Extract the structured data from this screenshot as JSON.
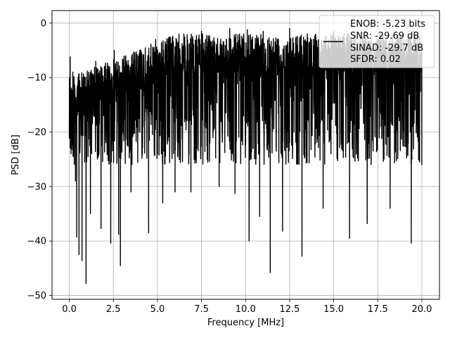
{
  "chart_data": {
    "type": "line",
    "title": "",
    "xlabel": "Frequency [MHz]",
    "ylabel": "PSD [dB]",
    "xlim": [
      -0.98,
      21.0
    ],
    "ylim": [
      -50.7,
      2.3
    ],
    "xticks": [
      {
        "value": 0.0,
        "label": "0.0"
      },
      {
        "value": 2.5,
        "label": "2.5"
      },
      {
        "value": 5.0,
        "label": "5.0"
      },
      {
        "value": 7.5,
        "label": "7.5"
      },
      {
        "value": 10.0,
        "label": "10.0"
      },
      {
        "value": 12.5,
        "label": "12.5"
      },
      {
        "value": 15.0,
        "label": "15.0"
      },
      {
        "value": 17.5,
        "label": "17.5"
      },
      {
        "value": 20.0,
        "label": "20.0"
      }
    ],
    "yticks": [
      {
        "value": 0,
        "label": "0"
      },
      {
        "value": -10,
        "label": "−10"
      },
      {
        "value": -20,
        "label": "−20"
      },
      {
        "value": -30,
        "label": "−30"
      },
      {
        "value": -40,
        "label": "−40"
      },
      {
        "value": -50,
        "label": "−50"
      }
    ],
    "grid": true,
    "legend": {
      "placement": "upper right",
      "entries": [
        "ENOB: -5.23 bits",
        "SNR: -29.69 dB",
        "SINAD: -29.7 dB",
        "SFDR: 0.02"
      ]
    },
    "series": [
      {
        "color": "#000000",
        "style": "dense noisy spectrum",
        "x_range": [
          0.0,
          20.0
        ],
        "typical_range_db": [
          -26,
          -2
        ],
        "points": [
          [
            0.0,
            -19
          ],
          [
            0.05,
            -6.2
          ],
          [
            0.1,
            -24
          ],
          [
            0.2,
            -9
          ],
          [
            0.35,
            -29
          ],
          [
            0.42,
            -39.3
          ],
          [
            0.5,
            -10
          ],
          [
            0.55,
            -42.5
          ],
          [
            0.6,
            -16
          ],
          [
            0.72,
            -43.6
          ],
          [
            0.8,
            -11
          ],
          [
            0.95,
            -47.8
          ],
          [
            1.1,
            -9
          ],
          [
            1.2,
            -35
          ],
          [
            1.5,
            -7
          ],
          [
            1.8,
            -37.7
          ],
          [
            2.0,
            -8
          ],
          [
            2.35,
            -40.4
          ],
          [
            2.55,
            -5
          ],
          [
            2.8,
            -38.8
          ],
          [
            2.9,
            -44.5
          ],
          [
            3.2,
            -6
          ],
          [
            3.5,
            -31
          ],
          [
            4.0,
            -5
          ],
          [
            4.5,
            -38.5
          ],
          [
            4.9,
            -3
          ],
          [
            5.3,
            -33
          ],
          [
            5.8,
            -5
          ],
          [
            6.0,
            -31
          ],
          [
            6.5,
            -2
          ],
          [
            6.9,
            -31
          ],
          [
            7.5,
            -1.5
          ],
          [
            8.5,
            -30
          ],
          [
            9.1,
            -1
          ],
          [
            9.4,
            -31.3
          ],
          [
            10.1,
            -1.2
          ],
          [
            10.2,
            -40
          ],
          [
            10.8,
            -35.5
          ],
          [
            11.0,
            -1.5
          ],
          [
            11.4,
            -45.8
          ],
          [
            12.1,
            -38.2
          ],
          [
            12.5,
            -1
          ],
          [
            13.2,
            -42.8
          ],
          [
            13.5,
            -2
          ],
          [
            14.4,
            -34
          ],
          [
            15.0,
            -1.5
          ],
          [
            15.9,
            -39.5
          ],
          [
            16.5,
            -2
          ],
          [
            16.9,
            -36.8
          ],
          [
            17.5,
            -3
          ],
          [
            18.2,
            -34
          ],
          [
            18.8,
            -2.5
          ],
          [
            19.4,
            -40.4
          ],
          [
            19.7,
            -4
          ],
          [
            20.0,
            -26
          ]
        ]
      }
    ]
  }
}
